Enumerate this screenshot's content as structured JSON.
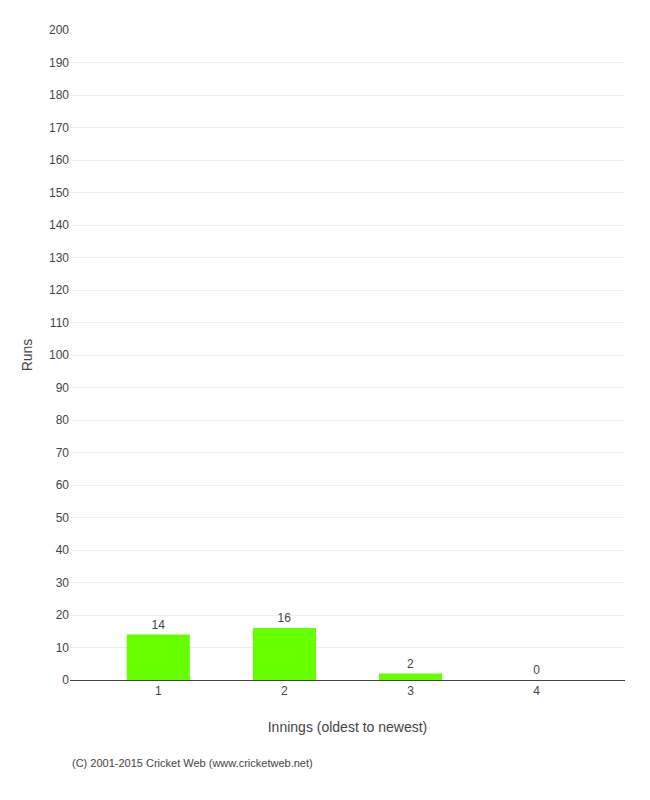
{
  "chart_data": {
    "type": "bar",
    "categories": [
      1,
      2,
      3,
      4
    ],
    "values": [
      14,
      16,
      2,
      0
    ],
    "color": "#66ff00",
    "xlabel": "Innings (oldest to newest)",
    "ylabel": "Runs",
    "ylim": [
      0,
      200
    ],
    "yticks": [
      0,
      10,
      20,
      30,
      40,
      50,
      60,
      70,
      80,
      90,
      100,
      110,
      120,
      130,
      140,
      150,
      160,
      170,
      180,
      190,
      200
    ],
    "grid": true,
    "data_labels": true,
    "annotations": [
      "(C) 2001-2015 Cricket Web (www.cricketweb.net)"
    ]
  }
}
